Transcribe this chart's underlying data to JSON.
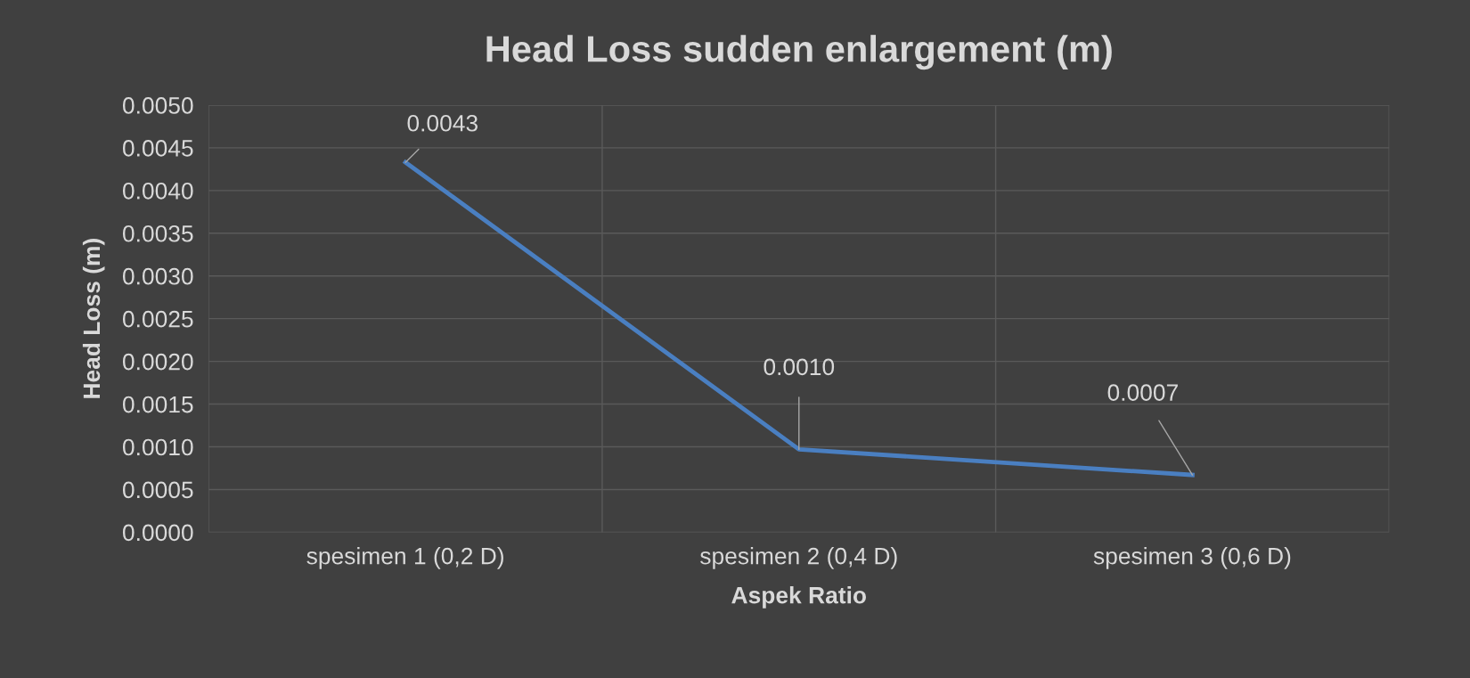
{
  "chart_data": {
    "type": "line",
    "title": "Head Loss sudden enlargement (m)",
    "xlabel": "Aspek Ratio",
    "ylabel": "Head Loss (m)",
    "categories": [
      "spesimen 1 (0,2 D)",
      "spesimen 2 (0,4 D)",
      "spesimen 3 (0,6 D)"
    ],
    "series": [
      {
        "color": "#4a7fc1",
        "values": [
          0.00433,
          0.00097,
          0.00067
        ],
        "value_labels": [
          "0.0043",
          "0.0010",
          "0.0007"
        ]
      }
    ],
    "ylim": [
      0,
      0.005
    ],
    "yticks": [
      {
        "value": 0,
        "label": "0.0000"
      },
      {
        "value": 0.0005,
        "label": "0.0005"
      },
      {
        "value": 0.001,
        "label": "0.0010"
      },
      {
        "value": 0.0015,
        "label": "0.0015"
      },
      {
        "value": 0.002,
        "label": "0.0020"
      },
      {
        "value": 0.0025,
        "label": "0.0025"
      },
      {
        "value": 0.003,
        "label": "0.0030"
      },
      {
        "value": 0.0035,
        "label": "0.0035"
      },
      {
        "value": 0.004,
        "label": "0.0040"
      },
      {
        "value": 0.0045,
        "label": "0.0045"
      },
      {
        "value": 0.005,
        "label": "0.0050"
      }
    ],
    "grid": true,
    "marker": "none",
    "line_style": "solid"
  }
}
